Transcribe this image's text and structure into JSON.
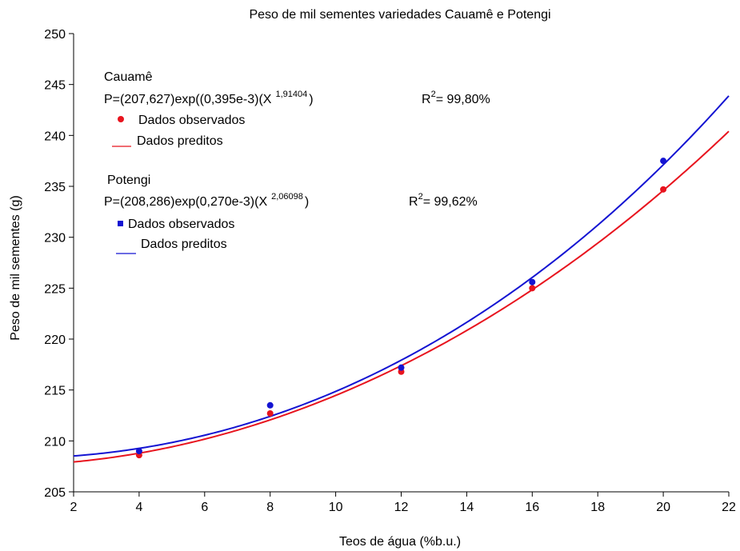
{
  "chart_data": {
    "type": "scatter",
    "title": "Peso de mil sementes variedades Cauamê e Potengi",
    "xlabel": "Teos de água (%b.u.)",
    "ylabel": "Peso de mil sementes (g)",
    "xlim": [
      2,
      22
    ],
    "ylim": [
      205,
      250
    ],
    "xticks": [
      2,
      4,
      6,
      8,
      10,
      12,
      14,
      16,
      18,
      20,
      22
    ],
    "yticks": [
      205,
      210,
      215,
      220,
      225,
      230,
      235,
      240,
      245,
      250
    ],
    "grid": false,
    "series": [
      {
        "name": "Cauamê",
        "color": "#e8141e",
        "observed": {
          "x": [
            4,
            8,
            12,
            16,
            20
          ],
          "y": [
            208.6,
            212.7,
            216.8,
            225.0,
            234.7
          ]
        },
        "model": {
          "a": 207.627,
          "b": 0.000395,
          "c": 1.91404
        }
      },
      {
        "name": "Potengi",
        "color": "#1414d2",
        "observed": {
          "x": [
            4,
            8,
            12,
            16,
            20
          ],
          "y": [
            209.0,
            213.5,
            217.2,
            225.6,
            237.5
          ]
        },
        "model": {
          "a": 208.286,
          "b": 0.00027,
          "c": 2.06098
        }
      }
    ]
  },
  "legend": {
    "cauame": {
      "name": "Cauamê",
      "equation": "P=(207,627)exp((0,395e-3)(X",
      "exponent": "1,91404",
      "close": ")",
      "r2_label": "R",
      "r2_sup": "2",
      "r2_value": "= 99,80%",
      "observed_label": "Dados observados",
      "predicted_label": "Dados preditos"
    },
    "potengi": {
      "name": "Potengi",
      "equation": "P=(208,286)exp(0,270e-3)(X",
      "exponent": "2,06098",
      "close": ")",
      "r2_label": "R",
      "r2_sup": "2",
      "r2_value": "= 99,62%",
      "observed_label": "Dados observados",
      "predicted_label": "Dados preditos"
    }
  }
}
